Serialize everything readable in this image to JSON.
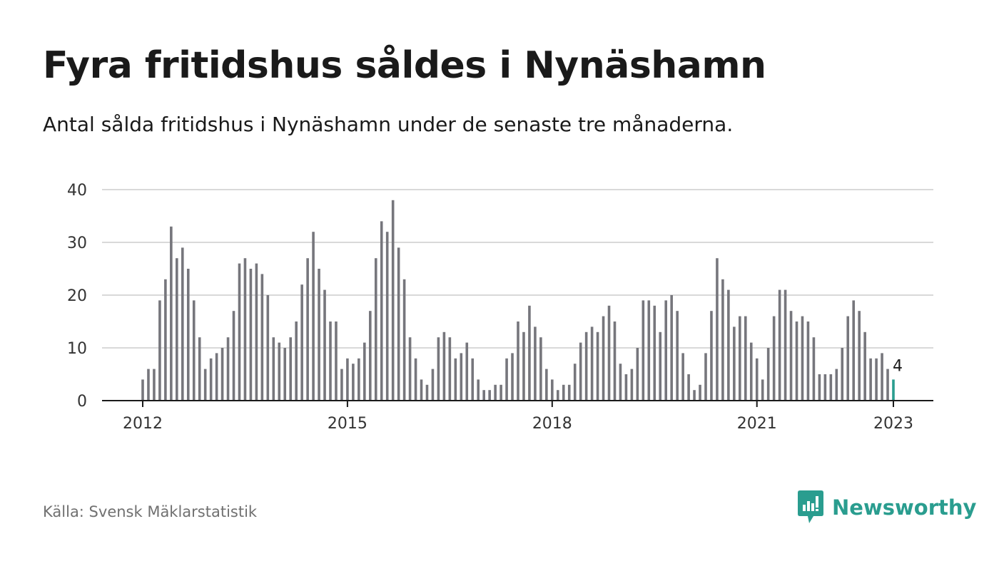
{
  "header": {
    "title": "Fyra fritidshus såldes i Nynäshamn",
    "subtitle": "Antal sålda fritidshus i Nynäshamn under de senaste tre månaderna."
  },
  "footer": {
    "source": "Källa: Svensk Mäklarstatistik",
    "brand": "Newsworthy",
    "brand_icon": "bar-chart-speech-bubble-icon"
  },
  "colors": {
    "bar": "#76767c",
    "highlight": "#2a9d8f",
    "grid": "#d9d9d9",
    "axis": "#1a1a1a",
    "brand": "#2a9d8f"
  },
  "chart_data": {
    "type": "bar",
    "title": "Fyra fritidshus såldes i Nynäshamn",
    "subtitle": "Antal sålda fritidshus i Nynäshamn under de senaste tre månaderna.",
    "xlabel": "",
    "ylabel": "",
    "x_start": "2012-01",
    "x_end": "2023-01",
    "x_ticks": [
      "2012",
      "2015",
      "2018",
      "2021",
      "2023"
    ],
    "x_tick_months": [
      "2012-01",
      "2015-01",
      "2018-01",
      "2021-01",
      "2023-01"
    ],
    "y_ticks": [
      0,
      10,
      20,
      30,
      40
    ],
    "ylim": [
      0,
      40
    ],
    "grid": true,
    "legend": "none",
    "highlight_last": true,
    "last_value_label": "4",
    "values": [
      4,
      6,
      6,
      19,
      23,
      33,
      27,
      29,
      25,
      19,
      12,
      6,
      8,
      9,
      10,
      12,
      17,
      26,
      27,
      25,
      26,
      24,
      20,
      12,
      11,
      10,
      12,
      15,
      22,
      27,
      32,
      25,
      21,
      15,
      15,
      6,
      8,
      7,
      8,
      11,
      17,
      27,
      34,
      32,
      38,
      29,
      23,
      12,
      8,
      4,
      3,
      6,
      12,
      13,
      12,
      8,
      9,
      11,
      8,
      4,
      2,
      2,
      3,
      3,
      8,
      9,
      15,
      13,
      18,
      14,
      12,
      6,
      4,
      2,
      3,
      3,
      7,
      11,
      13,
      14,
      13,
      16,
      18,
      15,
      7,
      5,
      6,
      10,
      19,
      19,
      18,
      13,
      19,
      20,
      17,
      9,
      5,
      2,
      3,
      9,
      17,
      27,
      23,
      21,
      14,
      16,
      16,
      11,
      8,
      4,
      10,
      16,
      21,
      21,
      17,
      15,
      16,
      15,
      12,
      5,
      5,
      5,
      6,
      10,
      16,
      19,
      17,
      13,
      8,
      8,
      9,
      6,
      4
    ]
  }
}
